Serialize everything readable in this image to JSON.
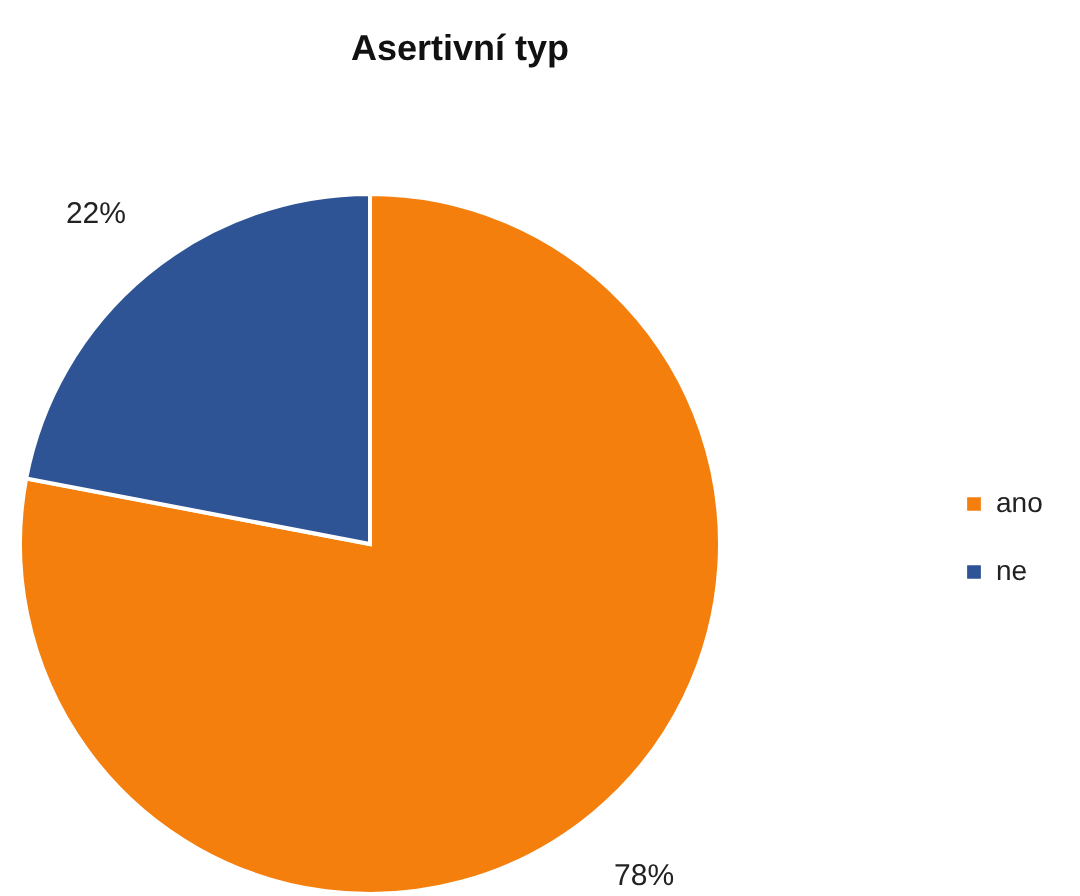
{
  "chart_data": {
    "type": "pie",
    "title": "Asertivní typ",
    "categories": [
      "ano",
      "ne"
    ],
    "values": [
      78,
      22
    ],
    "colors": [
      "#f57f0d",
      "#2f5496"
    ],
    "value_labels": [
      "78%",
      "22%"
    ],
    "legend": "right"
  }
}
